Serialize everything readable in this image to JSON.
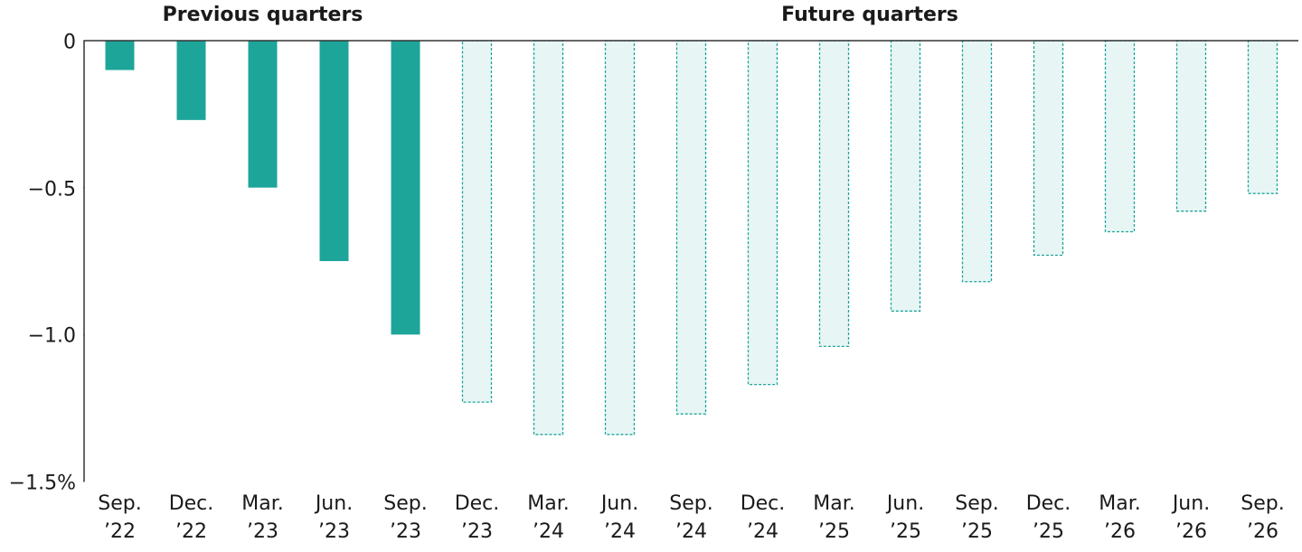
{
  "chart_data": {
    "type": "bar",
    "categories": [
      "Sep.\n’22",
      "Dec.\n’22",
      "Mar.\n’23",
      "Jun.\n’23",
      "Sep.\n’23",
      "Dec.\n’23",
      "Mar.\n’24",
      "Jun.\n’24",
      "Sep.\n’24",
      "Dec.\n’24",
      "Mar.\n’25",
      "Jun.\n’25",
      "Sep.\n’25",
      "Dec.\n’25",
      "Mar.\n’26",
      "Jun.\n’26",
      "Sep.\n’26"
    ],
    "series": [
      {
        "name": "Previous quarters",
        "color": "#1ea59a",
        "fill": "#1ea59a",
        "dashed": false,
        "values": [
          -0.1,
          -0.27,
          -0.5,
          -0.75,
          -1.0,
          null,
          null,
          null,
          null,
          null,
          null,
          null,
          null,
          null,
          null,
          null,
          null
        ]
      },
      {
        "name": "Future quarters",
        "color": "#1ea59a",
        "fill": "#e7f6f5",
        "dashed": true,
        "values": [
          null,
          null,
          null,
          null,
          null,
          -1.23,
          -1.34,
          -1.34,
          -1.27,
          -1.17,
          -1.04,
          -0.92,
          -0.82,
          -0.73,
          -0.65,
          -0.58,
          -0.52
        ]
      }
    ],
    "ylim": [
      -1.5,
      0
    ],
    "yticks": [
      0,
      {
        "value": -0.5,
        "label": "−0.5"
      },
      {
        "value": -1,
        "label": "−1.0"
      },
      {
        "value": -1.5,
        "label": "−1.5%"
      }
    ]
  }
}
